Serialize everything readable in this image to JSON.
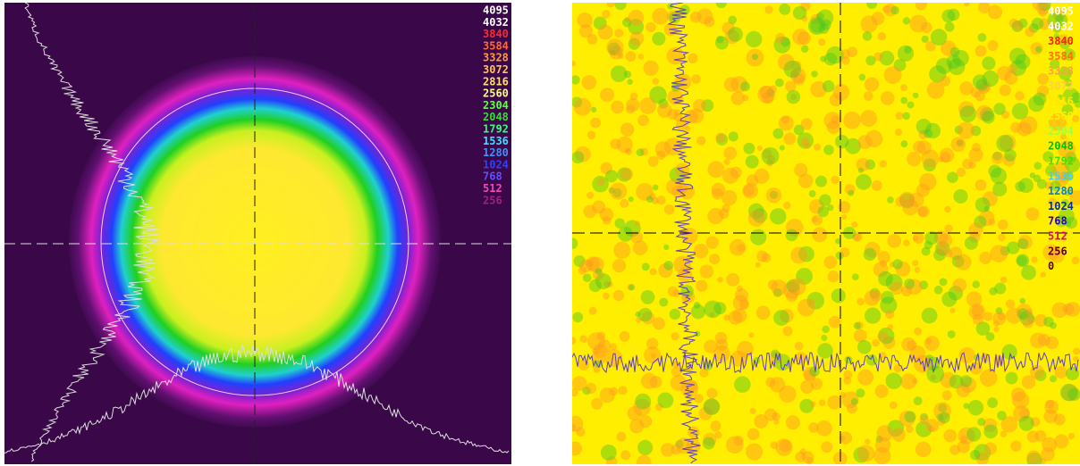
{
  "panels": [
    {
      "scale": [
        {
          "label": "4095",
          "color": "#ffffff"
        },
        {
          "label": "4032",
          "color": "#ffffff"
        },
        {
          "label": "3840",
          "color": "#ff2a2a"
        },
        {
          "label": "3584",
          "color": "#ff6a3a"
        },
        {
          "label": "3328",
          "color": "#ff9a40"
        },
        {
          "label": "3072",
          "color": "#ffc060"
        },
        {
          "label": "2816",
          "color": "#ffe070"
        },
        {
          "label": "2560",
          "color": "#ffff80"
        },
        {
          "label": "2304",
          "color": "#60ff40"
        },
        {
          "label": "2048",
          "color": "#30e030"
        },
        {
          "label": "1792",
          "color": "#30ff80"
        },
        {
          "label": "1536",
          "color": "#40e0ff"
        },
        {
          "label": "1280",
          "color": "#4090ff"
        },
        {
          "label": "1024",
          "color": "#3040ff"
        },
        {
          "label": "768",
          "color": "#6050ff"
        },
        {
          "label": "512",
          "color": "#ff40c0"
        },
        {
          "label": "256",
          "color": "#a02080"
        }
      ]
    },
    {
      "scale": [
        {
          "label": "4095",
          "color": "#ffffff"
        },
        {
          "label": "4032",
          "color": "#ffffff"
        },
        {
          "label": "3840",
          "color": "#ff2000"
        },
        {
          "label": "3584",
          "color": "#ff7000"
        },
        {
          "label": "3328",
          "color": "#ffa040"
        },
        {
          "label": "3072",
          "color": "#ffd040"
        },
        {
          "label": "2816",
          "color": "#ffe800"
        },
        {
          "label": "2560",
          "color": "#fff000"
        },
        {
          "label": "2304",
          "color": "#a0ff40"
        },
        {
          "label": "2048",
          "color": "#00c000"
        },
        {
          "label": "1792",
          "color": "#40e000"
        },
        {
          "label": "1536",
          "color": "#40d0ff"
        },
        {
          "label": "1280",
          "color": "#0080e0"
        },
        {
          "label": "1024",
          "color": "#0030a0"
        },
        {
          "label": "768",
          "color": "#3000c0"
        },
        {
          "label": "512",
          "color": "#e00080"
        },
        {
          "label": "256",
          "color": "#600020"
        },
        {
          "label": "0",
          "color": "#600000"
        }
      ]
    }
  ]
}
